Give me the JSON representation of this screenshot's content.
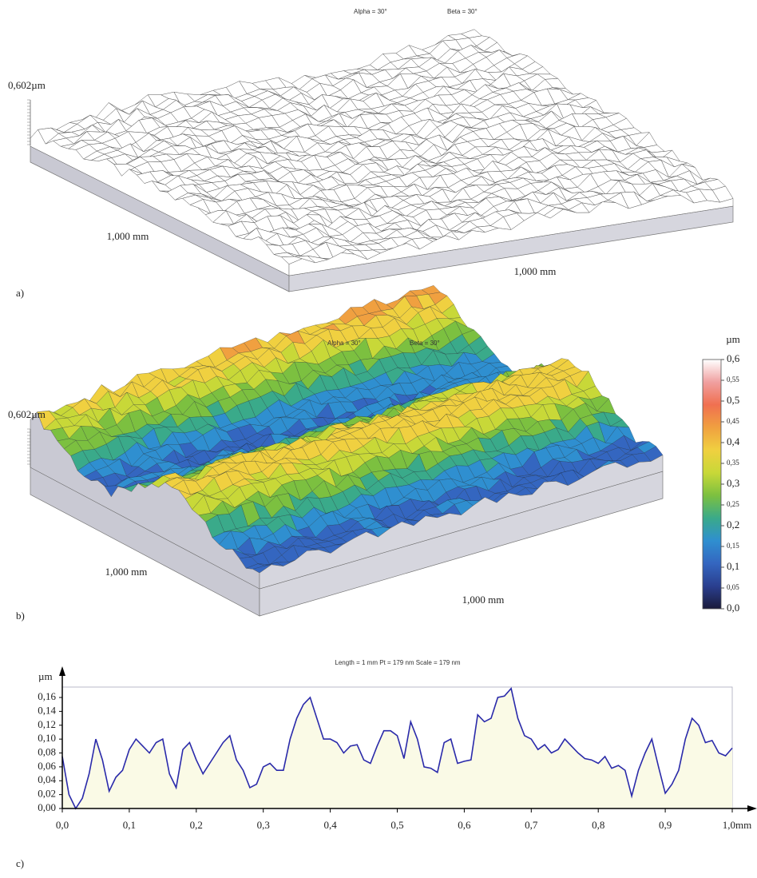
{
  "chart_data": [
    {
      "type": "surface",
      "panel": "a)",
      "view_labels": [
        "Alpha = 30°",
        "Beta = 30°"
      ],
      "z_label": "0,602µm",
      "x_label": "1,000 mm",
      "y_label": "1,000 mm"
    },
    {
      "type": "surface",
      "panel": "b)",
      "view_labels": [
        "Alpha = 30°",
        "Beta = 30°"
      ],
      "z_label": "0,602µm",
      "x_label": "1,000 mm",
      "y_label": "1,000 mm",
      "colorbar": {
        "label": "µm",
        "lim": [
          0,
          0.6
        ],
        "ticks": [
          {
            "value": 0,
            "label": "0,0"
          },
          {
            "value": 0.05,
            "label": "0,05"
          },
          {
            "value": 0.1,
            "label": "0,1"
          },
          {
            "value": 0.15,
            "label": "0,15"
          },
          {
            "value": 0.2,
            "label": "0,2"
          },
          {
            "value": 0.25,
            "label": "0,25"
          },
          {
            "value": 0.3,
            "label": "0,3"
          },
          {
            "value": 0.35,
            "label": "0,35"
          },
          {
            "value": 0.4,
            "label": "0,4"
          },
          {
            "value": 0.45,
            "label": "0,45"
          },
          {
            "value": 0.5,
            "label": "0,5"
          },
          {
            "value": 0.55,
            "label": "0,55"
          },
          {
            "value": 0.6,
            "label": "0,6"
          }
        ],
        "colors": [
          "#1a1a3a",
          "#2a3f8f",
          "#3466c0",
          "#2f8fd0",
          "#3aaa8a",
          "#7cc040",
          "#c8d838",
          "#f0d040",
          "#f0a040",
          "#f07050",
          "#f0a0a0",
          "#ffffff"
        ]
      }
    },
    {
      "type": "line",
      "panel": "c)",
      "title": "Length = 1 mm  Pt = 179 nm  Scale = 179 nm",
      "y_label": "µm",
      "color": "#2a2aaa",
      "fill": "#fafae6",
      "x": [
        0,
        0.01,
        0.02,
        0.03,
        0.04,
        0.05,
        0.06,
        0.07,
        0.08,
        0.09,
        0.1,
        0.11,
        0.12,
        0.13,
        0.14,
        0.15,
        0.16,
        0.17,
        0.18,
        0.19,
        0.2,
        0.21,
        0.22,
        0.23,
        0.24,
        0.25,
        0.26,
        0.27,
        0.28,
        0.29,
        0.3,
        0.31,
        0.32,
        0.33,
        0.34,
        0.35,
        0.36,
        0.37,
        0.38,
        0.39,
        0.4,
        0.41,
        0.42,
        0.43,
        0.44,
        0.45,
        0.46,
        0.47,
        0.48,
        0.49,
        0.5,
        0.51,
        0.52,
        0.53,
        0.54,
        0.55,
        0.56,
        0.57,
        0.58,
        0.59,
        0.6,
        0.61,
        0.62,
        0.63,
        0.64,
        0.65,
        0.66,
        0.67,
        0.68,
        0.69,
        0.7,
        0.71,
        0.72,
        0.73,
        0.74,
        0.75,
        0.76,
        0.77,
        0.78,
        0.79,
        0.8,
        0.81,
        0.82,
        0.83,
        0.84,
        0.85,
        0.86,
        0.87,
        0.88,
        0.89,
        0.9,
        0.91,
        0.92,
        0.93,
        0.94,
        0.95,
        0.96,
        0.97,
        0.98,
        0.99,
        1
      ],
      "values": [
        0.075,
        0.02,
        0,
        0.015,
        0.05,
        0.1,
        0.07,
        0.025,
        0.045,
        0.055,
        0.085,
        0.1,
        0.09,
        0.08,
        0.095,
        0.1,
        0.05,
        0.03,
        0.085,
        0.095,
        0.07,
        0.05,
        0.065,
        0.08,
        0.095,
        0.105,
        0.07,
        0.055,
        0.03,
        0.035,
        0.06,
        0.065,
        0.055,
        0.055,
        0.1,
        0.13,
        0.15,
        0.16,
        0.13,
        0.1,
        0.1,
        0.095,
        0.08,
        0.09,
        0.092,
        0.07,
        0.065,
        0.09,
        0.112,
        0.112,
        0.105,
        0.072,
        0.125,
        0.1,
        0.06,
        0.058,
        0.052,
        0.095,
        0.1,
        0.065,
        0.068,
        0.07,
        0.135,
        0.125,
        0.13,
        0.16,
        0.162,
        0.173,
        0.13,
        0.105,
        0.1,
        0.085,
        0.092,
        0.08,
        0.085,
        0.1,
        0.09,
        0.08,
        0.072,
        0.07,
        0.065,
        0.075,
        0.058,
        0.062,
        0.055,
        0.018,
        0.055,
        0.08,
        0.1,
        0.06,
        0.022,
        0.035,
        0.055,
        0.1,
        0.13,
        0.12,
        0.095,
        0.098,
        0.08,
        0.076,
        0.087
      ],
      "xlim": [
        0,
        1
      ],
      "ylim": [
        0,
        0.175
      ],
      "xticks": [
        {
          "value": 0,
          "label": "0,0"
        },
        {
          "value": 0.1,
          "label": "0,1"
        },
        {
          "value": 0.2,
          "label": "0,2"
        },
        {
          "value": 0.3,
          "label": "0,3"
        },
        {
          "value": 0.4,
          "label": "0,4"
        },
        {
          "value": 0.5,
          "label": "0,5"
        },
        {
          "value": 0.6,
          "label": "0,6"
        },
        {
          "value": 0.7,
          "label": "0,7"
        },
        {
          "value": 0.8,
          "label": "0,8"
        },
        {
          "value": 0.9,
          "label": "0,9"
        },
        {
          "value": 1,
          "label": "1,0mm"
        }
      ],
      "yticks": [
        {
          "value": 0,
          "label": "0,00"
        },
        {
          "value": 0.02,
          "label": "0,02"
        },
        {
          "value": 0.04,
          "label": "0,04"
        },
        {
          "value": 0.06,
          "label": "0,06"
        },
        {
          "value": 0.08,
          "label": "0,08"
        },
        {
          "value": 0.1,
          "label": "0,10"
        },
        {
          "value": 0.12,
          "label": "0,12"
        },
        {
          "value": 0.14,
          "label": "0,14"
        },
        {
          "value": 0.16,
          "label": "0,16"
        }
      ]
    }
  ]
}
